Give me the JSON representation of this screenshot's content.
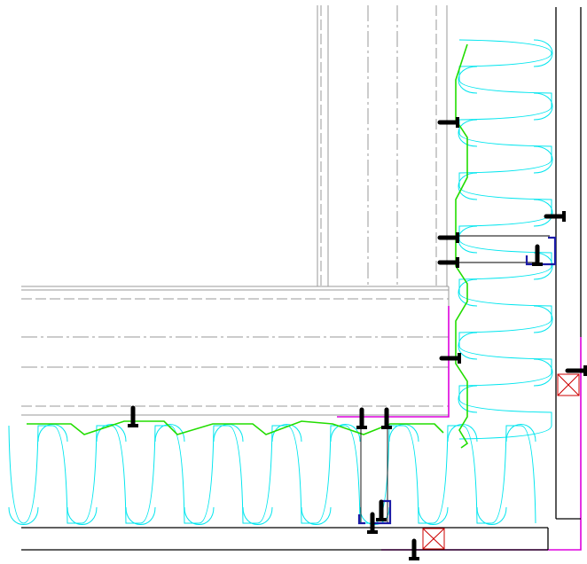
{
  "drawing": {
    "colors": {
      "background": "#ffffff",
      "structure": "#9a9a9a",
      "insulation": "#00e5ee",
      "membrane": "#22dd00",
      "flashing": "#dd00dd",
      "fastener": "#000000",
      "bracket": "#1a1aa6",
      "cladding": "#000000",
      "isolator": "#cc0000"
    },
    "icons": {
      "fastener": "screw-icon",
      "isolator": "thermal-break-pad-icon",
      "bracket": "z-bracket-icon"
    }
  }
}
